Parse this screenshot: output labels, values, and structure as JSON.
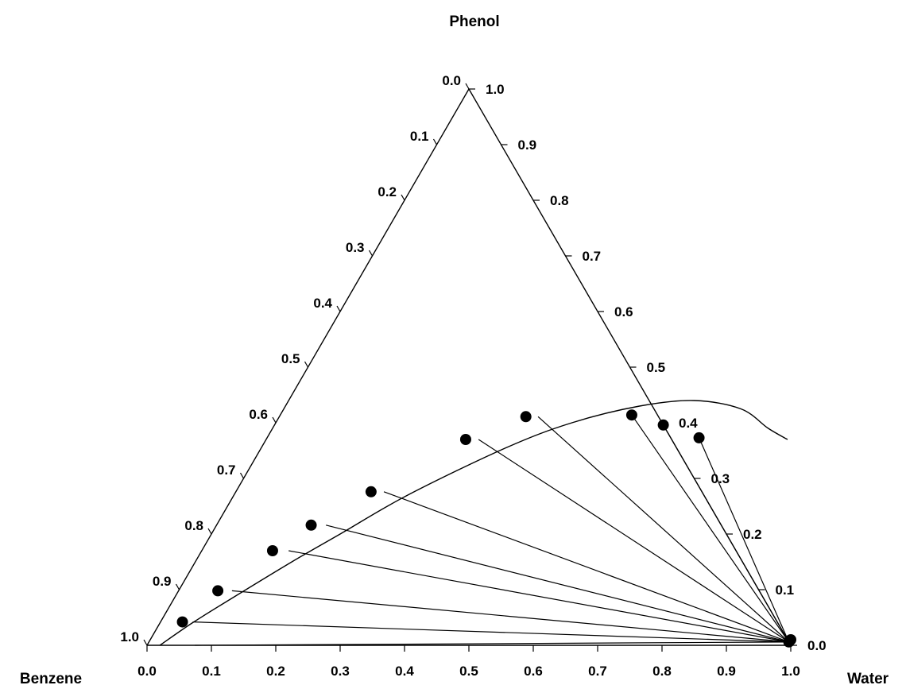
{
  "chart_data": {
    "type": "ternary",
    "vertex_labels": {
      "top": "Phenol",
      "bottom_left": "Benzene",
      "bottom_right": "Water"
    },
    "axes": {
      "bottom": {
        "ticks": [
          "0.0",
          "0.1",
          "0.2",
          "0.3",
          "0.4",
          "0.5",
          "0.6",
          "0.7",
          "0.8",
          "0.9",
          "1.0"
        ]
      },
      "left": {
        "ticks": [
          "0.0",
          "0.1",
          "0.2",
          "0.3",
          "0.4",
          "0.5",
          "0.6",
          "0.7",
          "0.8",
          "0.9",
          "1.0"
        ]
      },
      "right": {
        "ticks": [
          "0.0",
          "0.1",
          "0.2",
          "0.3",
          "0.4",
          "0.5",
          "0.6",
          "0.7",
          "0.8",
          "0.9",
          "1.0"
        ]
      }
    },
    "binodal_curve": [
      {
        "water": 0.02,
        "phenol": 0.0
      },
      {
        "water": 0.05,
        "phenol": 0.04
      },
      {
        "water": 0.09,
        "phenol": 0.085
      },
      {
        "water": 0.15,
        "phenol": 0.15
      },
      {
        "water": 0.2,
        "phenol": 0.2
      },
      {
        "water": 0.27,
        "phenol": 0.27
      },
      {
        "water": 0.38,
        "phenol": 0.355
      },
      {
        "water": 0.46,
        "phenol": 0.4
      },
      {
        "water": 0.55,
        "phenol": 0.43
      },
      {
        "water": 0.63,
        "phenol": 0.44
      },
      {
        "water": 0.71,
        "phenol": 0.425
      },
      {
        "water": 0.77,
        "phenol": 0.39
      },
      {
        "water": 0.81,
        "phenol": 0.37
      }
    ],
    "points": [
      {
        "water": 0.034,
        "phenol": 0.042
      },
      {
        "water": 0.061,
        "phenol": 0.098
      },
      {
        "water": 0.11,
        "phenol": 0.17
      },
      {
        "water": 0.147,
        "phenol": 0.216
      },
      {
        "water": 0.21,
        "phenol": 0.276
      },
      {
        "water": 0.31,
        "phenol": 0.37
      },
      {
        "water": 0.383,
        "phenol": 0.411
      },
      {
        "water": 0.546,
        "phenol": 0.414
      },
      {
        "water": 0.604,
        "phenol": 0.396
      },
      {
        "water": 0.671,
        "phenol": 0.373
      }
    ],
    "tie_lines": [
      {
        "from": {
          "water": 0.0745,
          "phenol": 0.0
        },
        "to": {
          "water": 0.9941,
          "phenol": 0.0059
        }
      },
      {
        "from": {
          "water": 0.05,
          "phenol": 0.042
        },
        "to": {
          "water": 0.9941,
          "phenol": 0.0059
        }
      },
      {
        "from": {
          "water": 0.083,
          "phenol": 0.098
        },
        "to": {
          "water": 0.9941,
          "phenol": 0.0059
        }
      },
      {
        "from": {
          "water": 0.135,
          "phenol": 0.17
        },
        "to": {
          "water": 0.9941,
          "phenol": 0.0059
        }
      },
      {
        "from": {
          "water": 0.17,
          "phenol": 0.216
        },
        "to": {
          "water": 0.9941,
          "phenol": 0.0059
        }
      },
      {
        "from": {
          "water": 0.23,
          "phenol": 0.276
        },
        "to": {
          "water": 0.9941,
          "phenol": 0.0059
        }
      },
      {
        "from": {
          "water": 0.33,
          "phenol": 0.37
        },
        "to": {
          "water": 0.9941,
          "phenol": 0.0059
        }
      },
      {
        "from": {
          "water": 0.402,
          "phenol": 0.411
        },
        "to": {
          "water": 0.9941,
          "phenol": 0.0059
        }
      },
      {
        "from": {
          "water": 0.546,
          "phenol": 0.414
        },
        "to": {
          "water": 0.9941,
          "phenol": 0.0059
        }
      },
      {
        "from": {
          "water": 0.604,
          "phenol": 0.396
        },
        "to": {
          "water": 0.9941,
          "phenol": 0.0059
        }
      },
      {
        "from": {
          "water": 0.671,
          "phenol": 0.373
        },
        "to": {
          "water": 0.9941,
          "phenol": 0.0059
        }
      }
    ],
    "water_vertex_cluster": [
      {
        "water": 0.995,
        "phenol": 0.01
      },
      {
        "water": 0.994,
        "phenol": 0.006
      }
    ]
  }
}
